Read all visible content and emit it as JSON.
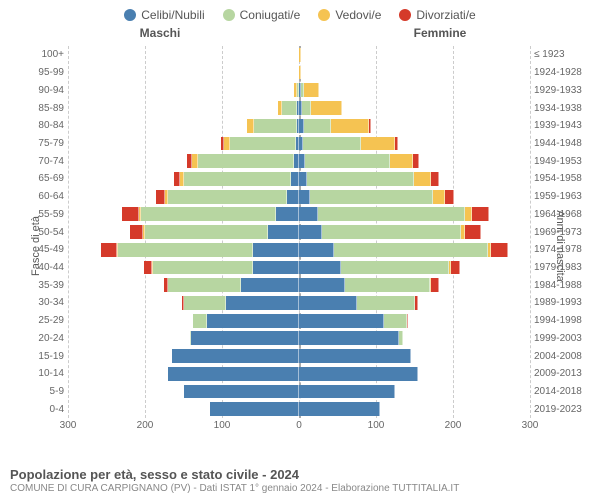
{
  "legend": [
    {
      "label": "Celibi/Nubili",
      "color": "#4a7fb0"
    },
    {
      "label": "Coniugati/e",
      "color": "#b7d6a1"
    },
    {
      "label": "Vedovi/e",
      "color": "#f5c352"
    },
    {
      "label": "Divorziati/e",
      "color": "#d53a2a"
    }
  ],
  "side_titles": {
    "male": "Maschi",
    "female": "Femmine"
  },
  "y_labels": {
    "left": "Fasce di età",
    "right": "Anni di nascita"
  },
  "x_axis": {
    "max": 300,
    "ticks": [
      300,
      200,
      100,
      0,
      100,
      200,
      300
    ]
  },
  "colors": {
    "grid": "#cccccc",
    "center": "#aaaaaa",
    "bg": "#ffffff"
  },
  "fontsize": {
    "legend": 12,
    "labels": 10,
    "title": 13
  },
  "title": "Popolazione per età, sesso e stato civile - 2024",
  "subtitle": "COMUNE DI CURA CARPIGNANO (PV) - Dati ISTAT 1° gennaio 2024 - Elaborazione TUTTITALIA.IT",
  "rows": [
    {
      "age": "100+",
      "birth": "≤ 1923",
      "m": [
        0,
        0,
        0,
        0
      ],
      "f": [
        0,
        0,
        2,
        0
      ]
    },
    {
      "age": "95-99",
      "birth": "1924-1928",
      "m": [
        0,
        0,
        0,
        0
      ],
      "f": [
        0,
        0,
        3,
        0
      ]
    },
    {
      "age": "90-94",
      "birth": "1929-1933",
      "m": [
        0,
        2,
        5,
        0
      ],
      "f": [
        3,
        3,
        20,
        0
      ]
    },
    {
      "age": "85-89",
      "birth": "1934-1938",
      "m": [
        2,
        20,
        5,
        0
      ],
      "f": [
        4,
        12,
        40,
        0
      ]
    },
    {
      "age": "80-84",
      "birth": "1939-1943",
      "m": [
        3,
        55,
        10,
        0
      ],
      "f": [
        6,
        35,
        50,
        2
      ]
    },
    {
      "age": "75-79",
      "birth": "1944-1948",
      "m": [
        4,
        85,
        8,
        4
      ],
      "f": [
        5,
        75,
        45,
        4
      ]
    },
    {
      "age": "70-74",
      "birth": "1949-1953",
      "m": [
        6,
        125,
        8,
        6
      ],
      "f": [
        8,
        110,
        30,
        8
      ]
    },
    {
      "age": "65-69",
      "birth": "1954-1958",
      "m": [
        10,
        140,
        5,
        8
      ],
      "f": [
        10,
        140,
        22,
        10
      ]
    },
    {
      "age": "60-64",
      "birth": "1959-1963",
      "m": [
        15,
        155,
        4,
        12
      ],
      "f": [
        14,
        160,
        15,
        12
      ]
    },
    {
      "age": "55-59",
      "birth": "1964-1968",
      "m": [
        30,
        175,
        3,
        22
      ],
      "f": [
        25,
        190,
        10,
        22
      ]
    },
    {
      "age": "50-54",
      "birth": "1969-1973",
      "m": [
        40,
        160,
        2,
        18
      ],
      "f": [
        30,
        180,
        6,
        20
      ]
    },
    {
      "age": "45-49",
      "birth": "1974-1978",
      "m": [
        60,
        175,
        2,
        20
      ],
      "f": [
        45,
        200,
        4,
        22
      ]
    },
    {
      "age": "40-44",
      "birth": "1979-1983",
      "m": [
        60,
        130,
        1,
        10
      ],
      "f": [
        55,
        140,
        2,
        12
      ]
    },
    {
      "age": "35-39",
      "birth": "1984-1988",
      "m": [
        75,
        95,
        0,
        5
      ],
      "f": [
        60,
        110,
        1,
        10
      ]
    },
    {
      "age": "30-34",
      "birth": "1989-1993",
      "m": [
        95,
        55,
        0,
        2
      ],
      "f": [
        75,
        75,
        0,
        4
      ]
    },
    {
      "age": "25-29",
      "birth": "1994-1998",
      "m": [
        120,
        18,
        0,
        0
      ],
      "f": [
        110,
        30,
        0,
        2
      ]
    },
    {
      "age": "20-24",
      "birth": "1999-2003",
      "m": [
        140,
        2,
        0,
        0
      ],
      "f": [
        130,
        5,
        0,
        0
      ]
    },
    {
      "age": "15-19",
      "birth": "2004-2008",
      "m": [
        165,
        0,
        0,
        0
      ],
      "f": [
        145,
        0,
        0,
        0
      ]
    },
    {
      "age": "10-14",
      "birth": "2009-2013",
      "m": [
        170,
        0,
        0,
        0
      ],
      "f": [
        155,
        0,
        0,
        0
      ]
    },
    {
      "age": "5-9",
      "birth": "2014-2018",
      "m": [
        150,
        0,
        0,
        0
      ],
      "f": [
        125,
        0,
        0,
        0
      ]
    },
    {
      "age": "0-4",
      "birth": "2019-2023",
      "m": [
        115,
        0,
        0,
        0
      ],
      "f": [
        105,
        0,
        0,
        0
      ]
    }
  ]
}
